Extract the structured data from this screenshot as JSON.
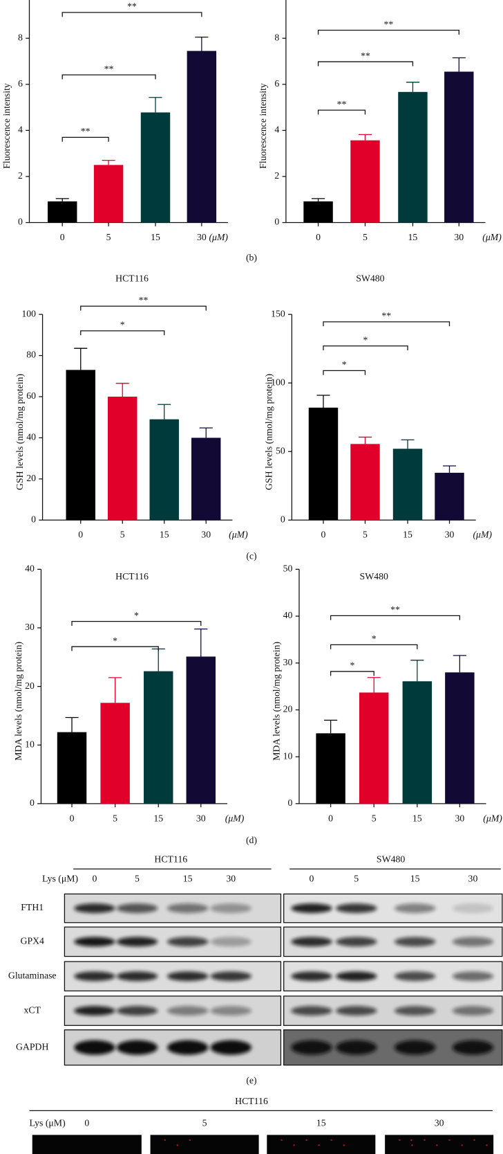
{
  "chart_data": [
    {
      "type": "bar",
      "y_label": "Fluorescence intensity",
      "categories": [
        "0",
        "5",
        "15",
        "30"
      ],
      "x_unit": "(μM)",
      "values": [
        0.92,
        2.5,
        4.78,
        7.45
      ],
      "errors": [
        0.12,
        0.2,
        0.65,
        0.6
      ],
      "colors": [
        "#000000",
        "#e0002a",
        "#003a3a",
        "#120a35"
      ],
      "ylim": [
        0,
        9.66
      ],
      "yticks": [
        0,
        2,
        4,
        6,
        8
      ],
      "significance": [
        {
          "from": 0,
          "to": 1,
          "level": 3.7,
          "label": "**"
        },
        {
          "from": 0,
          "to": 2,
          "level": 6.41,
          "label": "**"
        },
        {
          "from": 0,
          "to": 3,
          "level": 9.12,
          "label": "**"
        }
      ]
    },
    {
      "type": "bar",
      "y_label": "Fluorescence intensity",
      "categories": [
        "0",
        "5",
        "15",
        "30"
      ],
      "x_unit": "(μM)",
      "values": [
        0.92,
        3.57,
        5.67,
        6.55
      ],
      "errors": [
        0.12,
        0.25,
        0.42,
        0.6
      ],
      "colors": [
        "#000000",
        "#e0002a",
        "#003a3a",
        "#120a35"
      ],
      "ylim": [
        0,
        9.66
      ],
      "yticks": [
        0,
        2,
        4,
        6,
        8
      ],
      "significance": [
        {
          "from": 0,
          "to": 1,
          "level": 4.88,
          "label": "**"
        },
        {
          "from": 0,
          "to": 2,
          "level": 6.98,
          "label": "**"
        },
        {
          "from": 0,
          "to": 3,
          "level": 8.35,
          "label": "**"
        }
      ]
    },
    {
      "type": "bar",
      "title": "HCT116",
      "y_label": "GSH levels (nmol/mg protein)",
      "categories": [
        "0",
        "5",
        "15",
        "30"
      ],
      "x_unit": "(μM)",
      "values": [
        73,
        60,
        49,
        40
      ],
      "errors": [
        10.5,
        6.5,
        7.2,
        4.8
      ],
      "colors": [
        "#000000",
        "#e0002a",
        "#003a3a",
        "#120a35"
      ],
      "ylim": [
        0,
        100
      ],
      "yticks": [
        0,
        20,
        40,
        60,
        80,
        100
      ],
      "significance": [
        {
          "from": 0,
          "to": 2,
          "level": 92,
          "label": "*"
        },
        {
          "from": 0,
          "to": 3,
          "level": 104,
          "label": "**"
        }
      ]
    },
    {
      "type": "bar",
      "title": "SW480",
      "y_label": "GSH levels (nmol/mg protein)",
      "categories": [
        "0",
        "5",
        "15",
        "30"
      ],
      "x_unit": "(μM)",
      "values": [
        82,
        55.5,
        52,
        34.5
      ],
      "errors": [
        9,
        5,
        6.5,
        5
      ],
      "colors": [
        "#000000",
        "#e0002a",
        "#003a3a",
        "#120a35"
      ],
      "ylim": [
        0,
        150
      ],
      "yticks": [
        0,
        50,
        100,
        150
      ],
      "significance": [
        {
          "from": 0,
          "to": 1,
          "level": 109,
          "label": "*"
        },
        {
          "from": 0,
          "to": 2,
          "level": 127,
          "label": "*"
        },
        {
          "from": 0,
          "to": 3,
          "level": 144.6,
          "label": "**"
        }
      ]
    },
    {
      "type": "bar",
      "title": "HCT116",
      "y_label": "MDA levels (nmol/mg protein)",
      "categories": [
        "0",
        "5",
        "15",
        "30"
      ],
      "x_unit": "(μM)",
      "values": [
        12.2,
        17.2,
        22.6,
        25.1
      ],
      "errors": [
        2.5,
        4.3,
        3.8,
        4.7
      ],
      "colors": [
        "#000000",
        "#e0002a",
        "#003a3a",
        "#120a35"
      ],
      "ylim": [
        0,
        40
      ],
      "yticks": [
        0,
        10,
        20,
        30,
        40
      ],
      "significance": [
        {
          "from": 0,
          "to": 2,
          "level": 26.8,
          "label": "*"
        },
        {
          "from": 0,
          "to": 3,
          "level": 31.1,
          "label": "*"
        }
      ]
    },
    {
      "type": "bar",
      "title": "SW480",
      "y_label": "MDA levels (nmol/mg protein)",
      "categories": [
        "0",
        "5",
        "15",
        "30"
      ],
      "x_unit": "(μM)",
      "values": [
        15,
        23.7,
        26.1,
        28
      ],
      "errors": [
        2.8,
        3.2,
        4.5,
        3.6
      ],
      "colors": [
        "#000000",
        "#e0002a",
        "#003a3a",
        "#120a35"
      ],
      "ylim": [
        0,
        50
      ],
      "yticks": [
        0,
        10,
        20,
        30,
        40,
        50
      ],
      "significance": [
        {
          "from": 0,
          "to": 1,
          "level": 28.2,
          "label": "*"
        },
        {
          "from": 0,
          "to": 2,
          "level": 33.9,
          "label": "*"
        },
        {
          "from": 0,
          "to": 3,
          "level": 40.1,
          "label": "**"
        }
      ]
    }
  ],
  "captions": [
    "(b)",
    "(c)",
    "(d)",
    "(e)"
  ],
  "blot": {
    "groups": [
      "HCT116",
      "SW480"
    ],
    "dose_label": "Lys (μM)",
    "doses": [
      "0",
      "5",
      "15",
      "30"
    ],
    "proteins": [
      "FTH1",
      "GPX4",
      "Glutaminase",
      "xCT",
      "GAPDH"
    ]
  },
  "microscopy": {
    "group": "HCT116",
    "dose_label": "Lys (μM)",
    "doses": [
      "0",
      "5",
      "15",
      "30"
    ]
  }
}
